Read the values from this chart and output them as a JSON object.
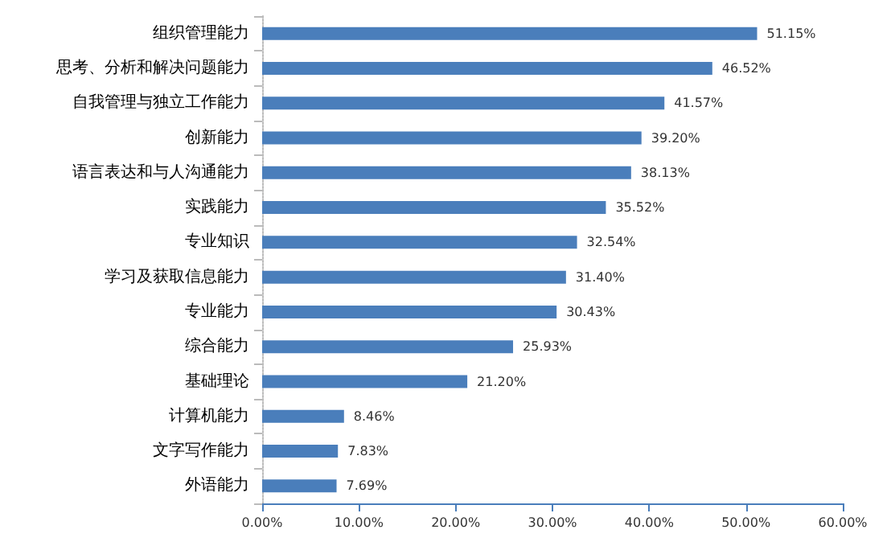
{
  "chart_data": {
    "type": "bar",
    "orientation": "horizontal",
    "categories": [
      "组织管理能力",
      "思考、分析和解决问题能力",
      "自我管理与独立工作能力",
      "创新能力",
      "语言表达和与人沟通能力",
      "实践能力",
      "专业知识",
      "学习及获取信息能力",
      "专业能力",
      "综合能力",
      "基础理论",
      "计算机能力",
      "文字写作能力",
      "外语能力"
    ],
    "values": [
      51.15,
      46.52,
      41.57,
      39.2,
      38.13,
      35.52,
      32.54,
      31.4,
      30.43,
      25.93,
      21.2,
      8.46,
      7.83,
      7.69
    ],
    "value_labels": [
      "51.15%",
      "46.52%",
      "41.57%",
      "39.20%",
      "38.13%",
      "35.52%",
      "32.54%",
      "31.40%",
      "30.43%",
      "25.93%",
      "21.20%",
      "8.46%",
      "7.83%",
      "7.69%"
    ],
    "color": "#4a7ebb",
    "xlim": [
      0,
      60
    ],
    "xticks": [
      {
        "value": 0,
        "label": "0.00%"
      },
      {
        "value": 10,
        "label": "10.00%"
      },
      {
        "value": 20,
        "label": "20.00%"
      },
      {
        "value": 30,
        "label": "30.00%"
      },
      {
        "value": 40,
        "label": "40.00%"
      },
      {
        "value": 50,
        "label": "50.00%"
      },
      {
        "value": 60,
        "label": "60.00%"
      }
    ],
    "grid": false
  }
}
